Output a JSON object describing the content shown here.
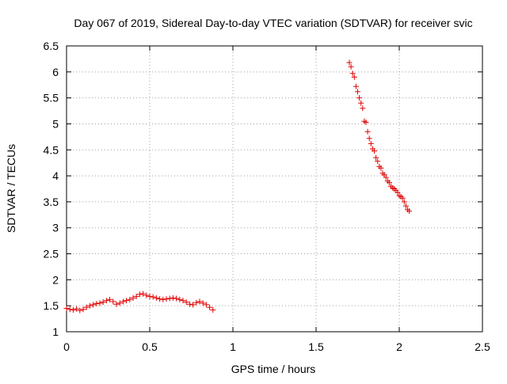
{
  "chart_data": {
    "type": "scatter",
    "title": "Day 067 of 2019, Sidereal Day-to-day VTEC variation (SDTVAR) for receiver svic",
    "xlabel": "GPS time / hours",
    "ylabel": "SDTVAR / TECUs",
    "xlim": [
      0,
      2.5
    ],
    "ylim": [
      1,
      6.5
    ],
    "x_ticks": [
      0,
      0.5,
      1,
      1.5,
      2,
      2.5
    ],
    "x_tick_labels": [
      "0",
      "0.5",
      "1",
      "1.5",
      "2",
      "2.5"
    ],
    "y_ticks": [
      1,
      1.5,
      2,
      2.5,
      3,
      3.5,
      4,
      4.5,
      5,
      5.5,
      6,
      6.5
    ],
    "y_tick_labels": [
      "1",
      "1.5",
      "2",
      "2.5",
      "3",
      "3.5",
      "4",
      "4.5",
      "5",
      "5.5",
      "6",
      "6.5"
    ],
    "grid": true,
    "marker": "+",
    "marker_color": "#e00000",
    "series": [
      {
        "name": "SDTVAR",
        "points": [
          [
            0.0,
            1.45
          ],
          [
            0.02,
            1.43
          ],
          [
            0.04,
            1.42
          ],
          [
            0.06,
            1.44
          ],
          [
            0.08,
            1.41
          ],
          [
            0.1,
            1.43
          ],
          [
            0.12,
            1.47
          ],
          [
            0.14,
            1.5
          ],
          [
            0.16,
            1.52
          ],
          [
            0.18,
            1.54
          ],
          [
            0.2,
            1.55
          ],
          [
            0.22,
            1.57
          ],
          [
            0.24,
            1.6
          ],
          [
            0.26,
            1.62
          ],
          [
            0.28,
            1.58
          ],
          [
            0.3,
            1.53
          ],
          [
            0.32,
            1.55
          ],
          [
            0.34,
            1.58
          ],
          [
            0.36,
            1.6
          ],
          [
            0.38,
            1.62
          ],
          [
            0.4,
            1.65
          ],
          [
            0.42,
            1.68
          ],
          [
            0.44,
            1.72
          ],
          [
            0.46,
            1.73
          ],
          [
            0.48,
            1.7
          ],
          [
            0.5,
            1.68
          ],
          [
            0.52,
            1.67
          ],
          [
            0.54,
            1.65
          ],
          [
            0.56,
            1.63
          ],
          [
            0.58,
            1.62
          ],
          [
            0.6,
            1.63
          ],
          [
            0.62,
            1.64
          ],
          [
            0.64,
            1.65
          ],
          [
            0.66,
            1.64
          ],
          [
            0.68,
            1.62
          ],
          [
            0.7,
            1.6
          ],
          [
            0.72,
            1.57
          ],
          [
            0.74,
            1.53
          ],
          [
            0.76,
            1.52
          ],
          [
            0.78,
            1.56
          ],
          [
            0.8,
            1.58
          ],
          [
            0.82,
            1.55
          ],
          [
            0.84,
            1.52
          ],
          [
            0.86,
            1.47
          ],
          [
            0.88,
            1.42
          ],
          [
            1.7,
            6.18
          ],
          [
            1.71,
            6.1
          ],
          [
            1.72,
            5.97
          ],
          [
            1.73,
            5.9
          ],
          [
            1.74,
            5.72
          ],
          [
            1.75,
            5.62
          ],
          [
            1.76,
            5.5
          ],
          [
            1.77,
            5.4
          ],
          [
            1.78,
            5.3
          ],
          [
            1.79,
            5.05
          ],
          [
            1.8,
            5.03
          ],
          [
            1.81,
            4.85
          ],
          [
            1.82,
            4.72
          ],
          [
            1.83,
            4.62
          ],
          [
            1.84,
            4.52
          ],
          [
            1.85,
            4.48
          ],
          [
            1.86,
            4.35
          ],
          [
            1.87,
            4.28
          ],
          [
            1.88,
            4.18
          ],
          [
            1.89,
            4.15
          ],
          [
            1.9,
            4.05
          ],
          [
            1.91,
            4.02
          ],
          [
            1.92,
            3.97
          ],
          [
            1.93,
            3.9
          ],
          [
            1.94,
            3.87
          ],
          [
            1.95,
            3.8
          ],
          [
            1.96,
            3.77
          ],
          [
            1.97,
            3.75
          ],
          [
            1.98,
            3.72
          ],
          [
            1.99,
            3.68
          ],
          [
            2.0,
            3.62
          ],
          [
            2.01,
            3.6
          ],
          [
            2.02,
            3.57
          ],
          [
            2.03,
            3.5
          ],
          [
            2.04,
            3.42
          ],
          [
            2.05,
            3.35
          ],
          [
            2.06,
            3.32
          ]
        ]
      }
    ]
  }
}
